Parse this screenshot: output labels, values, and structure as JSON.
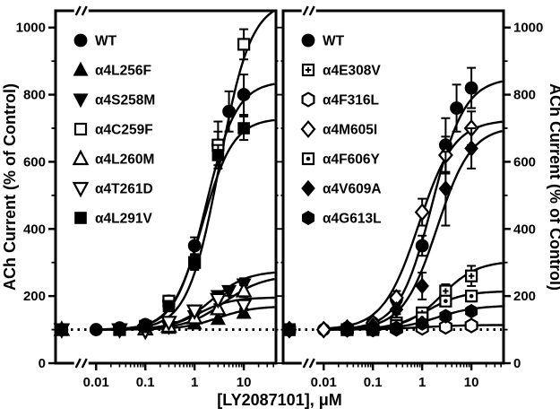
{
  "chart_data": {
    "type": "scatter",
    "xlabel": "[LY2087101], μM",
    "ylabel_left": "ACh Current (% of Control)",
    "ylabel_right": "ACh Current (% of Control)",
    "x_range": [
      0.0015,
      45
    ],
    "ylim": [
      0,
      1050
    ],
    "x_ticks": [
      {
        "v": 0.01,
        "label": "0.01"
      },
      {
        "v": 0.1,
        "label": "0.1"
      },
      {
        "v": 1,
        "label": "1"
      },
      {
        "v": 10,
        "label": "10"
      }
    ],
    "y_ticks": {
      "major_step": 200,
      "minor_step": 100,
      "max": 1000
    },
    "baseline": 100,
    "axis_break_x": 0.005,
    "grid": false,
    "legend_position": "top-left-inside",
    "colors": {
      "fg": "#000000",
      "bg": "#ffffff"
    },
    "panels": [
      {
        "name": "left",
        "series": [
          {
            "label": "WT",
            "marker": "circle-filled",
            "x": [
              0.002,
              0.01,
              0.03,
              0.1,
              0.3,
              1,
              3,
              5,
              10
            ],
            "y": [
              100,
              100,
              105,
              115,
              185,
              350,
              650,
              750,
              800
            ],
            "err": [
              0,
              0,
              0,
              0,
              15,
              25,
              70,
              60,
              60
            ],
            "fit": {
              "bottom": 100,
              "top": 840,
              "ec50": 1.7,
              "hill": 1.4
            }
          },
          {
            "label": "α4L256F",
            "marker": "triangle-up-filled",
            "x": [
              0.002,
              0.1,
              0.3,
              1,
              3,
              10
            ],
            "y": [
              100,
              100,
              105,
              118,
              132,
              150
            ],
            "err": [
              0,
              0,
              0,
              0,
              0,
              12
            ],
            "fit": {
              "bottom": 100,
              "top": 170,
              "ec50": 3,
              "hill": 1.2
            }
          },
          {
            "label": "α4S258M",
            "marker": "triangle-down-filled",
            "x": [
              0.002,
              0.1,
              0.3,
              1,
              3,
              5,
              10
            ],
            "y": [
              100,
              100,
              108,
              140,
              200,
              215,
              235
            ],
            "err": [
              0,
              0,
              0,
              0,
              14,
              14,
              18
            ],
            "fit": {
              "bottom": 100,
              "top": 275,
              "ec50": 2.2,
              "hill": 1.2
            }
          },
          {
            "label": "α4C259F",
            "marker": "square-open",
            "x": [
              0.002,
              0.03,
              0.1,
              0.3,
              1,
              3,
              10
            ],
            "y": [
              100,
              100,
              110,
              185,
              300,
              650,
              950
            ],
            "err": [
              0,
              0,
              0,
              12,
              22,
              40,
              45
            ],
            "fit": {
              "bottom": 100,
              "top": 1080,
              "ec50": 3.2,
              "hill": 1.35
            }
          },
          {
            "label": "α4L260M",
            "marker": "triangle-up-open",
            "x": [
              0.002,
              0.1,
              0.3,
              1,
              3,
              10
            ],
            "y": [
              100,
              102,
              110,
              135,
              162,
              215
            ],
            "err": [
              0,
              0,
              0,
              0,
              0,
              18
            ],
            "fit": {
              "bottom": 100,
              "top": 262,
              "ec50": 4,
              "hill": 1.1
            }
          },
          {
            "label": "α4T261D",
            "marker": "triangle-down-open",
            "x": [
              0.002,
              0.03,
              0.1,
              0.3,
              1,
              3,
              10
            ],
            "y": [
              100,
              100,
              96,
              122,
              156,
              190,
              172
            ],
            "err": [
              0,
              0,
              0,
              0,
              0,
              14,
              14
            ],
            "fit": {
              "bottom": 100,
              "top": 196,
              "ec50": 1.2,
              "hill": 1.3
            }
          },
          {
            "label": "α4L291V",
            "marker": "square-filled",
            "x": [
              0.002,
              0.03,
              0.1,
              0.3,
              1,
              3,
              10
            ],
            "y": [
              100,
              100,
              108,
              170,
              300,
              620,
              700
            ],
            "err": [
              0,
              0,
              0,
              12,
              20,
              30,
              35
            ],
            "fit": {
              "bottom": 100,
              "top": 730,
              "ec50": 1.45,
              "hill": 1.4
            }
          }
        ]
      },
      {
        "name": "right",
        "series": [
          {
            "label": "WT",
            "marker": "circle-filled",
            "x": [
              0.002,
              0.01,
              0.03,
              0.1,
              0.3,
              1,
              3,
              5,
              10
            ],
            "y": [
              100,
              100,
              105,
              120,
              190,
              350,
              650,
              760,
              820
            ],
            "err": [
              0,
              0,
              0,
              10,
              15,
              30,
              80,
              70,
              60
            ],
            "fit": {
              "bottom": 100,
              "top": 850,
              "ec50": 1.6,
              "hill": 1.3
            }
          },
          {
            "label": "α4E308V",
            "marker": "square-plus",
            "x": [
              0.002,
              0.03,
              0.1,
              0.3,
              1,
              3,
              10
            ],
            "y": [
              100,
              100,
              105,
              120,
              150,
              215,
              260
            ],
            "err": [
              0,
              0,
              0,
              0,
              12,
              20,
              30
            ],
            "fit": {
              "bottom": 100,
              "top": 305,
              "ec50": 2.5,
              "hill": 1.2
            }
          },
          {
            "label": "α4F316L",
            "marker": "hexagon-open",
            "x": [
              0.002,
              0.03,
              0.1,
              0.3,
              1,
              3,
              10
            ],
            "y": [
              100,
              100,
              100,
              102,
              105,
              108,
              112
            ],
            "err": [
              0,
              0,
              0,
              0,
              0,
              0,
              0
            ],
            "fit": {
              "bottom": 100,
              "top": 114,
              "ec50": 1,
              "hill": 1
            }
          },
          {
            "label": "α4M605I",
            "marker": "diamond-open",
            "x": [
              0.002,
              0.01,
              0.03,
              0.1,
              0.3,
              1,
              3,
              10
            ],
            "y": [
              100,
              100,
              105,
              120,
              195,
              450,
              620,
              700
            ],
            "err": [
              0,
              0,
              0,
              0,
              20,
              40,
              55,
              50
            ],
            "fit": {
              "bottom": 100,
              "top": 725,
              "ec50": 0.85,
              "hill": 1.2
            }
          },
          {
            "label": "α4F606Y",
            "marker": "square-dot",
            "x": [
              0.002,
              0.03,
              0.1,
              0.3,
              1,
              3,
              10
            ],
            "y": [
              100,
              100,
              100,
              112,
              135,
              185,
              200
            ],
            "err": [
              0,
              0,
              0,
              0,
              10,
              14,
              16
            ],
            "fit": {
              "bottom": 100,
              "top": 215,
              "ec50": 1.3,
              "hill": 1.2
            }
          },
          {
            "label": "α4V609A",
            "marker": "diamond-filled",
            "x": [
              0.002,
              0.03,
              0.1,
              0.3,
              1,
              3,
              10
            ],
            "y": [
              100,
              100,
              112,
              160,
              230,
              520,
              640
            ],
            "err": [
              0,
              0,
              0,
              14,
              40,
              110,
              60
            ],
            "fit": {
              "bottom": 100,
              "top": 705,
              "ec50": 2.0,
              "hill": 1.25
            }
          },
          {
            "label": "α4G613L",
            "marker": "hexagon-filled",
            "x": [
              0.002,
              0.03,
              0.1,
              0.3,
              1,
              3,
              10
            ],
            "y": [
              100,
              100,
              100,
              105,
              118,
              140,
              155
            ],
            "err": [
              0,
              0,
              0,
              0,
              0,
              0,
              12
            ],
            "fit": {
              "bottom": 100,
              "top": 172,
              "ec50": 2,
              "hill": 1.1
            }
          }
        ]
      }
    ]
  }
}
